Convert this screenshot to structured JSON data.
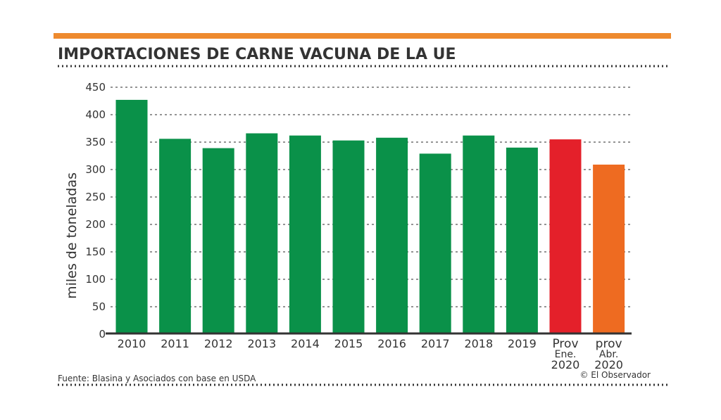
{
  "chart_data": {
    "type": "bar",
    "title": "IMPORTACIONES DE CARNE VACUNA DE LA UE",
    "ylabel": "miles de toneladas",
    "xlabel": "",
    "ylim": [
      0,
      450
    ],
    "yticks": [
      0,
      50,
      100,
      150,
      200,
      250,
      300,
      350,
      400,
      450
    ],
    "grid": true,
    "categories": [
      [
        "2010"
      ],
      [
        "2011"
      ],
      [
        "2012"
      ],
      [
        "2013"
      ],
      [
        "2014"
      ],
      [
        "2015"
      ],
      [
        "2016"
      ],
      [
        "2017"
      ],
      [
        "2018"
      ],
      [
        "2019"
      ],
      [
        "Prov",
        "Ene.",
        "2020"
      ],
      [
        "prov",
        "Abr.",
        "2020"
      ]
    ],
    "values": [
      427,
      356,
      339,
      366,
      362,
      353,
      358,
      329,
      362,
      340,
      355,
      309
    ],
    "colors": [
      "#0a9149",
      "#0a9149",
      "#0a9149",
      "#0a9149",
      "#0a9149",
      "#0a9149",
      "#0a9149",
      "#0a9149",
      "#0a9149",
      "#0a9149",
      "#e4202a",
      "#ee6b21"
    ],
    "source": "Fuente: Blasina y Asociados con base en USDA",
    "credit": "© El Observador"
  },
  "accent_color": "#ee8a2e"
}
